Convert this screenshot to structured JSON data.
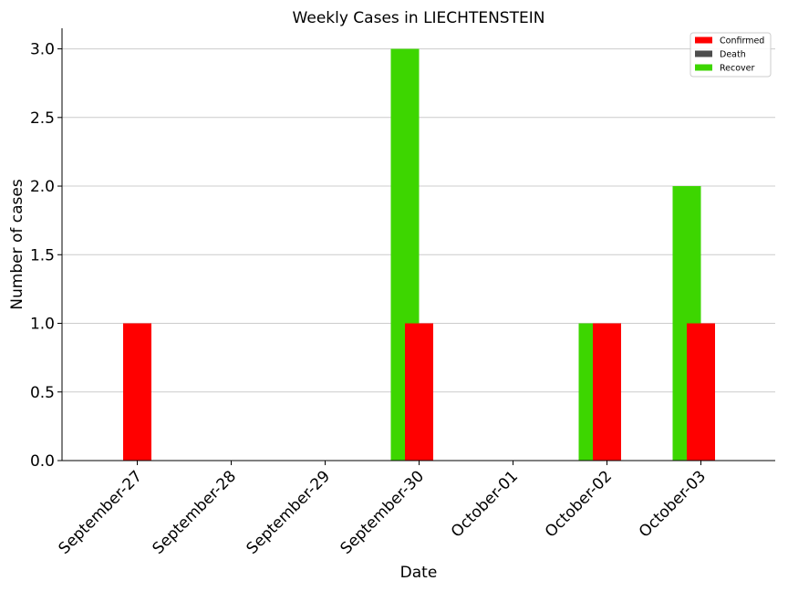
{
  "chart_data": {
    "type": "bar",
    "title": "Weekly Cases in LIECHTENSTEIN",
    "xlabel": "Date",
    "ylabel": "Number of cases",
    "categories": [
      "September-27",
      "September-28",
      "September-29",
      "September-30",
      "October-01",
      "October-02",
      "October-03"
    ],
    "series": [
      {
        "name": "Confirmed",
        "color": "#ff0000",
        "values": [
          1,
          0,
          0,
          1,
          0,
          1,
          1
        ]
      },
      {
        "name": "Death",
        "color": "#4d4d4d",
        "values": [
          0,
          0,
          0,
          0,
          0,
          0,
          0
        ]
      },
      {
        "name": "Recover",
        "color": "#3dd600",
        "values": [
          0,
          0,
          0,
          3,
          0,
          1,
          2
        ]
      }
    ],
    "ylim": [
      0,
      3.15
    ],
    "yticks": [
      "0.0",
      "0.5",
      "1.0",
      "1.5",
      "2.0",
      "2.5",
      "3.0"
    ],
    "grid": "y",
    "legend_position": "top-right"
  }
}
